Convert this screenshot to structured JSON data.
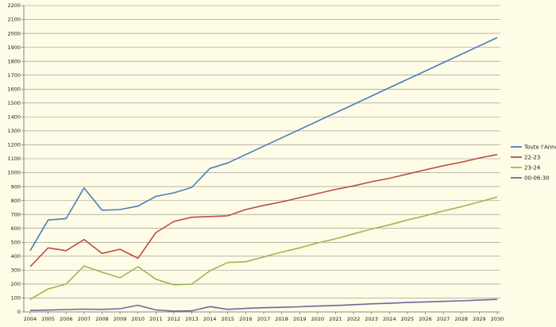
{
  "chart_data": {
    "type": "line",
    "title": "",
    "xlabel": "",
    "ylabel": "",
    "ylim": [
      0,
      2200
    ],
    "ytick_step": 100,
    "grid": "horizontal",
    "legend_position": "right",
    "categories": [
      2004,
      2005,
      2006,
      2007,
      2008,
      2009,
      2010,
      2011,
      2012,
      2013,
      2014,
      2015,
      2016,
      2017,
      2018,
      2019,
      2020,
      2021,
      2022,
      2023,
      2024,
      2025,
      2026,
      2027,
      2028,
      2029,
      2030
    ],
    "x_tick_labels": [
      "2004",
      "2005",
      "2006",
      "2007",
      "2008",
      "2009",
      "2010",
      "2011",
      "2012",
      "2013",
      "2014",
      "2015",
      "2016",
      "2017",
      "2018",
      "2019",
      "2020",
      "2021",
      "2022",
      "2023",
      "2024",
      "2025",
      "2026",
      "2027",
      "2028",
      "2029",
      "2030"
    ],
    "series": [
      {
        "name": "Toute l'Année",
        "color": "#4a7ebb",
        "values": [
          440,
          660,
          670,
          890,
          730,
          735,
          760,
          830,
          855,
          895,
          1030,
          1070,
          1130,
          1190,
          1250,
          1310,
          1370,
          1430,
          1490,
          1550,
          1610,
          1670,
          1730,
          1790,
          1850,
          1910,
          1970
        ]
      },
      {
        "name": "22-23",
        "color": "#be4b48",
        "values": [
          325,
          460,
          440,
          520,
          420,
          450,
          385,
          570,
          650,
          680,
          685,
          690,
          735,
          765,
          790,
          820,
          850,
          880,
          905,
          935,
          960,
          990,
          1020,
          1050,
          1075,
          1105,
          1130
        ]
      },
      {
        "name": "23-24",
        "color": "#98b954",
        "values": [
          90,
          165,
          200,
          330,
          285,
          245,
          325,
          235,
          195,
          200,
          295,
          355,
          360,
          395,
          430,
          460,
          495,
          525,
          560,
          595,
          625,
          660,
          690,
          725,
          755,
          790,
          825
        ]
      },
      {
        "name": "00-06:30",
        "color": "#7d60a0",
        "values": [
          10,
          13,
          17,
          20,
          18,
          23,
          48,
          14,
          5,
          8,
          38,
          18,
          25,
          30,
          33,
          37,
          42,
          46,
          52,
          58,
          62,
          68,
          72,
          76,
          80,
          85,
          90
        ]
      }
    ]
  }
}
